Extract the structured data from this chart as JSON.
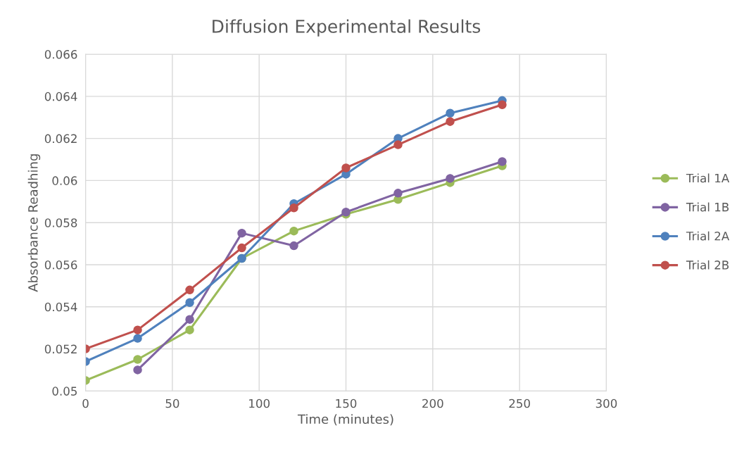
{
  "chart_data": {
    "type": "line",
    "title": "Diffusion Experimental Results",
    "xlabel": "Time (minutes)",
    "ylabel": "Absorbance Readhing",
    "x": [
      0,
      30,
      60,
      90,
      120,
      150,
      180,
      210,
      240
    ],
    "series": [
      {
        "name": "Trial 1A",
        "color": "#9bbb59",
        "values": [
          0.0505,
          0.0515,
          0.0529,
          0.0563,
          0.0576,
          0.0584,
          0.0591,
          0.0599,
          0.0607
        ]
      },
      {
        "name": "Trial 1B",
        "color": "#8064a2",
        "values": [
          null,
          0.051,
          0.0534,
          0.0575,
          0.0569,
          0.0585,
          0.0594,
          0.0601,
          0.0609
        ]
      },
      {
        "name": "Trial 2A",
        "color": "#4f81bd",
        "values": [
          0.0514,
          0.0525,
          0.0542,
          0.0563,
          0.0589,
          0.0603,
          0.062,
          0.0632,
          0.0638
        ]
      },
      {
        "name": "Trial 2B",
        "color": "#c0504d",
        "values": [
          0.052,
          0.0529,
          0.0548,
          0.0568,
          0.0587,
          0.0606,
          0.0617,
          0.0628,
          0.0636
        ]
      }
    ],
    "xlim": [
      0,
      300
    ],
    "xticks": [
      0,
      50,
      100,
      150,
      200,
      250,
      300
    ],
    "ylim": [
      0.05,
      0.066
    ],
    "yticks": [
      0.05,
      0.052,
      0.054,
      0.056,
      0.058,
      0.06,
      0.062,
      0.064,
      0.066
    ],
    "grid": true,
    "legend": "right",
    "marker": "circle",
    "line_style": "solid"
  }
}
